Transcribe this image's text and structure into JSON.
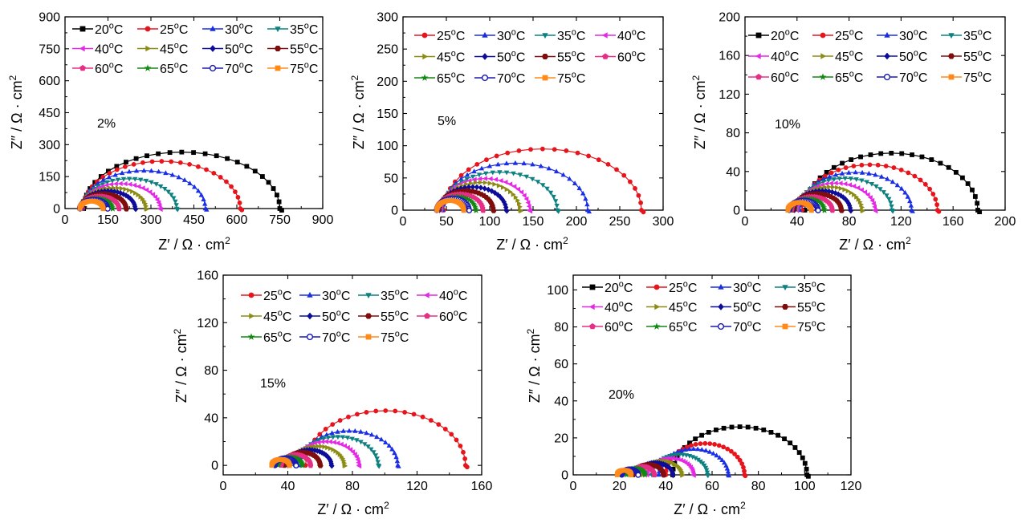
{
  "colors": {
    "20": "#000000",
    "25": "#e8141c",
    "30": "#1a2ee6",
    "35": "#0d8080",
    "40": "#e627e6",
    "45": "#8c8c14",
    "50": "#0d0d99",
    "55": "#800d0d",
    "60": "#e62e86",
    "65": "#138713",
    "70": "#1a1ab3",
    "75": "#ff8a1a"
  },
  "markers": {
    "20": "square",
    "25": "circle",
    "30": "triangle-up",
    "35": "triangle-down",
    "40": "triangle-left",
    "45": "triangle-right",
    "50": "diamond",
    "55": "hexagon",
    "60": "pentagon",
    "65": "star",
    "70": "circle-open",
    "75": "square"
  },
  "labels": {
    "xlabel_main": "Z′ / Ω · cm",
    "ylabel_main": "Z″ / Ω · cm",
    "unit_sup": "2",
    "deg_sup": "o",
    "temp_unit": "C"
  },
  "chart_data": [
    {
      "type": "scatter",
      "annotation": "2%",
      "xlim": [
        0,
        900
      ],
      "ylim": [
        0,
        900
      ],
      "xticks": [
        "0",
        "150",
        "300",
        "450",
        "600",
        "750",
        "900"
      ],
      "yticks": [
        "0",
        "150",
        "300",
        "450",
        "600",
        "750",
        "900"
      ],
      "legend": [
        "20",
        "25",
        "30",
        "35",
        "40",
        "45",
        "50",
        "55",
        "60",
        "65",
        "70",
        "75"
      ],
      "series": [
        {
          "name": "20",
          "x_start": 65,
          "x_end": 750,
          "y_peak": 265
        },
        {
          "name": "25",
          "x_start": 63,
          "x_end": 612,
          "y_peak": 222
        },
        {
          "name": "30",
          "x_start": 61,
          "x_end": 490,
          "y_peak": 178
        },
        {
          "name": "35",
          "x_start": 59,
          "x_end": 390,
          "y_peak": 140
        },
        {
          "name": "40",
          "x_start": 57,
          "x_end": 332,
          "y_peak": 117
        },
        {
          "name": "45",
          "x_start": 56,
          "x_end": 283,
          "y_peak": 97
        },
        {
          "name": "50",
          "x_start": 55,
          "x_end": 245,
          "y_peak": 82
        },
        {
          "name": "55",
          "x_start": 54,
          "x_end": 213,
          "y_peak": 69
        },
        {
          "name": "60",
          "x_start": 53,
          "x_end": 188,
          "y_peak": 58
        },
        {
          "name": "65",
          "x_start": 53,
          "x_end": 166,
          "y_peak": 49
        },
        {
          "name": "70",
          "x_start": 52,
          "x_end": 148,
          "y_peak": 42
        },
        {
          "name": "75",
          "x_start": 52,
          "x_end": 133,
          "y_peak": 35
        }
      ]
    },
    {
      "type": "scatter",
      "annotation": "5%",
      "xlim": [
        0,
        300
      ],
      "ylim": [
        0,
        300
      ],
      "xticks": [
        "0",
        "50",
        "100",
        "150",
        "200",
        "250",
        "300"
      ],
      "yticks": [
        "0",
        "50",
        "100",
        "150",
        "200",
        "250",
        "300"
      ],
      "legend": [
        "25",
        "30",
        "35",
        "40",
        "45",
        "50",
        "55",
        "60",
        "65",
        "70",
        "75"
      ],
      "series": [
        {
          "name": "25",
          "x_start": 47,
          "x_end": 275,
          "y_peak": 95
        },
        {
          "name": "30",
          "x_start": 46,
          "x_end": 213,
          "y_peak": 73
        },
        {
          "name": "35",
          "x_start": 45,
          "x_end": 178,
          "y_peak": 59
        },
        {
          "name": "40",
          "x_start": 44,
          "x_end": 146,
          "y_peak": 49
        },
        {
          "name": "45",
          "x_start": 43,
          "x_end": 135,
          "y_peak": 43
        },
        {
          "name": "50",
          "x_start": 42,
          "x_end": 119,
          "y_peak": 36
        },
        {
          "name": "55",
          "x_start": 41,
          "x_end": 104,
          "y_peak": 30
        },
        {
          "name": "60",
          "x_start": 40,
          "x_end": 92,
          "y_peak": 25
        },
        {
          "name": "65",
          "x_start": 40,
          "x_end": 84,
          "y_peak": 21
        },
        {
          "name": "70",
          "x_start": 39,
          "x_end": 76,
          "y_peak": 18
        },
        {
          "name": "75",
          "x_start": 39,
          "x_end": 70,
          "y_peak": 15
        }
      ]
    },
    {
      "type": "scatter",
      "annotation": "10%",
      "xlim": [
        0,
        200
      ],
      "ylim": [
        0,
        200
      ],
      "xticks": [
        "0",
        "40",
        "80",
        "120",
        "160",
        "200"
      ],
      "yticks": [
        "0",
        "40",
        "80",
        "120",
        "160",
        "200"
      ],
      "legend": [
        "20",
        "25",
        "30",
        "35",
        "40",
        "45",
        "50",
        "55",
        "60",
        "65",
        "70",
        "75"
      ],
      "series": [
        {
          "name": "20",
          "x_start": 46,
          "x_end": 179,
          "y_peak": 59
        },
        {
          "name": "25",
          "x_start": 44,
          "x_end": 148,
          "y_peak": 47
        },
        {
          "name": "30",
          "x_start": 42,
          "x_end": 128,
          "y_peak": 39
        },
        {
          "name": "35",
          "x_start": 41,
          "x_end": 113,
          "y_peak": 33
        },
        {
          "name": "40",
          "x_start": 40,
          "x_end": 100,
          "y_peak": 28
        },
        {
          "name": "45",
          "x_start": 39,
          "x_end": 90,
          "y_peak": 24
        },
        {
          "name": "50",
          "x_start": 38,
          "x_end": 81,
          "y_peak": 20
        },
        {
          "name": "55",
          "x_start": 37,
          "x_end": 74,
          "y_peak": 17
        },
        {
          "name": "60",
          "x_start": 36,
          "x_end": 67,
          "y_peak": 14
        },
        {
          "name": "65",
          "x_start": 35,
          "x_end": 61,
          "y_peak": 12
        },
        {
          "name": "70",
          "x_start": 34,
          "x_end": 56,
          "y_peak": 10
        },
        {
          "name": "75",
          "x_start": 33,
          "x_end": 51,
          "y_peak": 8
        }
      ]
    },
    {
      "type": "scatter",
      "annotation": "15%",
      "xlim": [
        0,
        160
      ],
      "ylim": [
        -8,
        160
      ],
      "xticks": [
        "0",
        "40",
        "80",
        "120",
        "160"
      ],
      "yticks": [
        "0",
        "40",
        "80",
        "120",
        "160"
      ],
      "legend": [
        "25",
        "30",
        "35",
        "40",
        "45",
        "50",
        "55",
        "60",
        "65",
        "70",
        "75"
      ],
      "series": [
        {
          "name": "25",
          "x_start": 51,
          "x_end": 150,
          "y_peak": 46
        },
        {
          "name": "30",
          "x_start": 48,
          "x_end": 108,
          "y_peak": 29
        },
        {
          "name": "35",
          "x_start": 46,
          "x_end": 96,
          "y_peak": 24
        },
        {
          "name": "40",
          "x_start": 44,
          "x_end": 84,
          "y_peak": 20
        },
        {
          "name": "45",
          "x_start": 42,
          "x_end": 75,
          "y_peak": 16
        },
        {
          "name": "50",
          "x_start": 40,
          "x_end": 67,
          "y_peak": 13
        },
        {
          "name": "55",
          "x_start": 38,
          "x_end": 60,
          "y_peak": 11
        },
        {
          "name": "60",
          "x_start": 36,
          "x_end": 54,
          "y_peak": 9
        },
        {
          "name": "65",
          "x_start": 34,
          "x_end": 49,
          "y_peak": 7
        },
        {
          "name": "70",
          "x_start": 32,
          "x_end": 45,
          "y_peak": 6
        },
        {
          "name": "75",
          "x_start": 30,
          "x_end": 41,
          "y_peak": 5
        }
      ]
    },
    {
      "type": "scatter",
      "annotation": "20%",
      "xlim": [
        0,
        120
      ],
      "ylim": [
        0,
        108
      ],
      "xticks": [
        "0",
        "20",
        "40",
        "60",
        "80",
        "100",
        "120"
      ],
      "yticks": [
        "0",
        "20",
        "40",
        "60",
        "80",
        "100"
      ],
      "legend": [
        "20",
        "25",
        "30",
        "35",
        "40",
        "45",
        "50",
        "55",
        "60",
        "65",
        "70",
        "75"
      ],
      "series": [
        {
          "name": "20",
          "x_start": 43,
          "x_end": 101,
          "y_peak": 26
        },
        {
          "name": "25",
          "x_start": 40,
          "x_end": 74,
          "y_peak": 17
        },
        {
          "name": "30",
          "x_start": 37,
          "x_end": 67,
          "y_peak": 14
        },
        {
          "name": "35",
          "x_start": 34,
          "x_end": 58,
          "y_peak": 11
        },
        {
          "name": "40",
          "x_start": 32,
          "x_end": 52,
          "y_peak": 9
        },
        {
          "name": "45",
          "x_start": 30,
          "x_end": 47,
          "y_peak": 7.5
        },
        {
          "name": "50",
          "x_start": 28,
          "x_end": 43,
          "y_peak": 6.5
        },
        {
          "name": "55",
          "x_start": 26,
          "x_end": 39,
          "y_peak": 5.5
        },
        {
          "name": "60",
          "x_start": 25,
          "x_end": 35,
          "y_peak": 4.5
        },
        {
          "name": "65",
          "x_start": 23,
          "x_end": 31,
          "y_peak": 3.5
        },
        {
          "name": "70",
          "x_start": 21,
          "x_end": 28,
          "y_peak": 3
        },
        {
          "name": "75",
          "x_start": 19,
          "x_end": 25,
          "y_peak": 2.5
        }
      ]
    }
  ]
}
